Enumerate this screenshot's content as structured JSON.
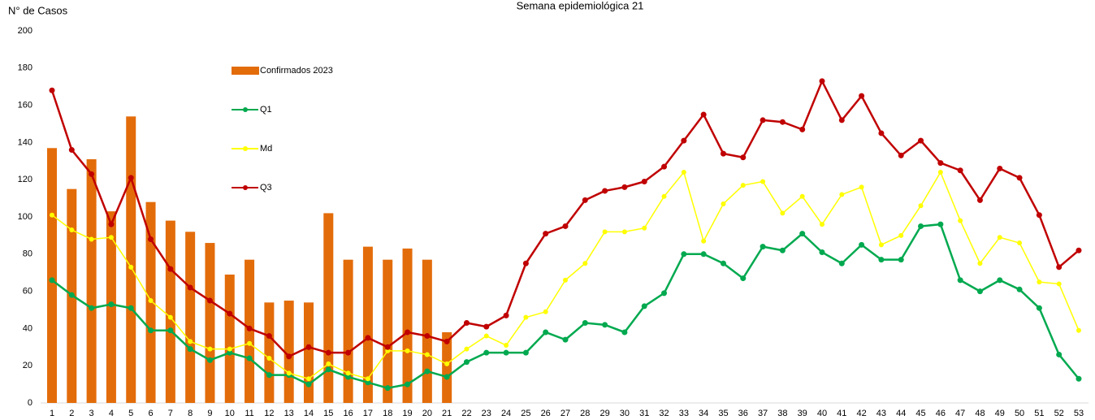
{
  "chart_data": {
    "type": "combo",
    "title": "Semana epidemiológica 21",
    "y_label": "N° de Casos",
    "categories": [
      "1",
      "2",
      "3",
      "4",
      "5",
      "6",
      "7",
      "8",
      "9",
      "10",
      "11",
      "12",
      "13",
      "14",
      "15",
      "16",
      "17",
      "18",
      "19",
      "20",
      "21",
      "22",
      "23",
      "24",
      "25",
      "26",
      "27",
      "28",
      "29",
      "30",
      "31",
      "32",
      "33",
      "34",
      "35",
      "36",
      "37",
      "38",
      "39",
      "40",
      "41",
      "42",
      "43",
      "44",
      "45",
      "46",
      "47",
      "48",
      "49",
      "50",
      "51",
      "52",
      "53"
    ],
    "ylim": [
      0,
      200
    ],
    "yticks": [
      0,
      20,
      40,
      60,
      80,
      100,
      120,
      140,
      160,
      180,
      200
    ],
    "grid": false,
    "series": [
      {
        "name": "Confirmados 2023",
        "type": "bar",
        "color": "#e36c0a",
        "values": [
          137,
          115,
          131,
          103,
          154,
          108,
          98,
          92,
          86,
          69,
          77,
          54,
          55,
          54,
          102,
          77,
          84,
          77,
          83,
          77,
          38,
          null,
          null,
          null,
          null,
          null,
          null,
          null,
          null,
          null,
          null,
          null,
          null,
          null,
          null,
          null,
          null,
          null,
          null,
          null,
          null,
          null,
          null,
          null,
          null,
          null,
          null,
          null,
          null,
          null,
          null,
          null,
          null
        ]
      },
      {
        "name": "Q1",
        "type": "line",
        "color": "#00a94f",
        "values": [
          66,
          58,
          51,
          53,
          51,
          39,
          39,
          29,
          23,
          27,
          24,
          15,
          15,
          10,
          18,
          14,
          11,
          8,
          10,
          17,
          14,
          22,
          27,
          27,
          27,
          38,
          34,
          43,
          42,
          38,
          52,
          59,
          80,
          80,
          75,
          67,
          84,
          82,
          91,
          81,
          75,
          85,
          77,
          77,
          95,
          96,
          66,
          60,
          66,
          61,
          51,
          26,
          13
        ]
      },
      {
        "name": "Md",
        "type": "line",
        "color": "#ffff00",
        "values": [
          101,
          93,
          88,
          89,
          73,
          55,
          46,
          33,
          29,
          29,
          32,
          24,
          16,
          13,
          21,
          16,
          13,
          28,
          28,
          26,
          21,
          29,
          36,
          31,
          46,
          49,
          66,
          75,
          92,
          92,
          94,
          111,
          124,
          87,
          107,
          117,
          119,
          102,
          111,
          96,
          112,
          116,
          85,
          90,
          106,
          124,
          98,
          75,
          89,
          86,
          65,
          64,
          39
        ]
      },
      {
        "name": "Q3",
        "type": "line",
        "color": "#c00000",
        "values": [
          168,
          136,
          123,
          96,
          121,
          88,
          72,
          62,
          55,
          48,
          40,
          36,
          25,
          30,
          27,
          27,
          35,
          30,
          38,
          36,
          33,
          43,
          41,
          47,
          75,
          91,
          95,
          109,
          114,
          116,
          119,
          127,
          141,
          155,
          134,
          132,
          152,
          151,
          147,
          173,
          152,
          165,
          145,
          133,
          141,
          129,
          125,
          109,
          126,
          121,
          101,
          73,
          82
        ]
      }
    ]
  }
}
